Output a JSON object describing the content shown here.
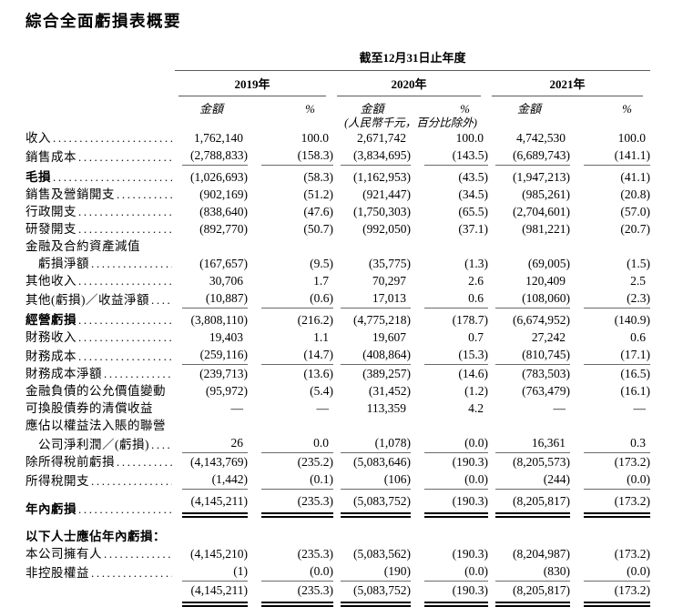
{
  "page": {
    "title": "綜合全面虧損表概要"
  },
  "table": {
    "period_header": "截至12月31日止年度",
    "year_headers": [
      "2019年",
      "2020年",
      "2021年"
    ],
    "amount_header": "金額",
    "percent_header": "%",
    "unit_note": "(人民幣千元，百分比除外)",
    "rows": [
      {
        "label": "收入",
        "dots": true,
        "values": [
          "1,762,140",
          "100.0",
          "2,671,742",
          "100.0",
          "4,742,530",
          "100.0"
        ]
      },
      {
        "label": "銷售成本",
        "dots": true,
        "rule": "single",
        "values": [
          "(2,788,833)",
          "(158.3)",
          "(3,834,695)",
          "(143.5)",
          "(6,689,743)",
          "(141.1)"
        ]
      },
      {
        "label": "毛損",
        "dots": true,
        "bold": true,
        "values": [
          "(1,026,693)",
          "(58.3)",
          "(1,162,953)",
          "(43.5)",
          "(1,947,213)",
          "(41.1)"
        ]
      },
      {
        "label": "銷售及營銷開支",
        "dots": true,
        "values": [
          "(902,169)",
          "(51.2)",
          "(921,447)",
          "(34.5)",
          "(985,261)",
          "(20.8)"
        ]
      },
      {
        "label": "行政開支",
        "dots": true,
        "values": [
          "(838,640)",
          "(47.6)",
          "(1,750,303)",
          "(65.5)",
          "(2,704,601)",
          "(57.0)"
        ]
      },
      {
        "label": "研發開支",
        "dots": true,
        "values": [
          "(892,770)",
          "(50.7)",
          "(992,050)",
          "(37.1)",
          "(981,221)",
          "(20.7)"
        ]
      },
      {
        "label": "金融及合約資產減值",
        "labelOnly": true
      },
      {
        "label": "虧損淨額",
        "indent": true,
        "dots": true,
        "values": [
          "(167,657)",
          "(9.5)",
          "(35,775)",
          "(1.3)",
          "(69,005)",
          "(1.5)"
        ]
      },
      {
        "label": "其他收入",
        "dots": true,
        "values": [
          "30,706",
          "1.7",
          "70,297",
          "2.6",
          "120,409",
          "2.5"
        ]
      },
      {
        "label": "其他(虧損)／收益淨額",
        "dots": true,
        "rule": "single",
        "values": [
          "(10,887)",
          "(0.6)",
          "17,013",
          "0.6",
          "(108,060)",
          "(2.3)"
        ]
      },
      {
        "label": "經營虧損",
        "dots": true,
        "bold": true,
        "values": [
          "(3,808,110)",
          "(216.2)",
          "(4,775,218)",
          "(178.7)",
          "(6,674,952)",
          "(140.9)"
        ]
      },
      {
        "label": "財務收入",
        "dots": true,
        "values": [
          "19,403",
          "1.1",
          "19,607",
          "0.7",
          "27,242",
          "0.6"
        ]
      },
      {
        "label": "財務成本",
        "dots": true,
        "rule": "single",
        "values": [
          "(259,116)",
          "(14.7)",
          "(408,864)",
          "(15.3)",
          "(810,745)",
          "(17.1)"
        ]
      },
      {
        "label": "財務成本淨額",
        "dots": true,
        "values": [
          "(239,713)",
          "(13.6)",
          "(389,257)",
          "(14.6)",
          "(783,503)",
          "(16.5)"
        ]
      },
      {
        "label": "金融負債的公允價值變動",
        "values": [
          "(95,972)",
          "(5.4)",
          "(31,452)",
          "(1.2)",
          "(763,479)",
          "(16.1)"
        ]
      },
      {
        "label": "可換股債券的清償收益",
        "values": [
          "—",
          "—",
          "113,359",
          "4.2",
          "—",
          "—"
        ]
      },
      {
        "label": "應佔以權益法入賬的聯營",
        "labelOnly": true
      },
      {
        "label": "公司淨利潤／(虧損)",
        "indent": true,
        "dots": true,
        "rule": "single",
        "values": [
          "26",
          "0.0",
          "(1,078)",
          "(0.0)",
          "16,361",
          "0.3"
        ]
      },
      {
        "label": "除所得稅前虧損",
        "dots": true,
        "values": [
          "(4,143,769)",
          "(235.2)",
          "(5,083,646)",
          "(190.3)",
          "(8,205,573)",
          "(173.2)"
        ]
      },
      {
        "label": "所得稅開支",
        "dots": true,
        "rule": "single",
        "values": [
          "(1,442)",
          "(0.1)",
          "(106)",
          "(0.0)",
          "(244)",
          "(0.0)"
        ]
      },
      {
        "label": "年內虧損",
        "dots": true,
        "bold": true,
        "rule": "double",
        "values": [
          "(4,145,211)",
          "(235.3)",
          "(5,083,752)",
          "(190.3)",
          "(8,205,817)",
          "(173.2)"
        ]
      },
      {
        "spacer": true
      },
      {
        "label": "以下人士應佔年內虧損：",
        "bold": true,
        "labelOnly": true
      },
      {
        "label": "本公司擁有人",
        "dots": true,
        "values": [
          "(4,145,210)",
          "(235.3)",
          "(5,083,562)",
          "(190.3)",
          "(8,204,987)",
          "(173.2)"
        ]
      },
      {
        "label": "非控股權益",
        "dots": true,
        "rule": "single",
        "values": [
          "(1)",
          "(0.0)",
          "(190)",
          "(0.0)",
          "(830)",
          "(0.0)"
        ]
      },
      {
        "label": "",
        "rule": "double",
        "values": [
          "(4,145,211)",
          "(235.3)",
          "(5,083,752)",
          "(190.3)",
          "(8,205,817)",
          "(173.2)"
        ]
      }
    ]
  }
}
